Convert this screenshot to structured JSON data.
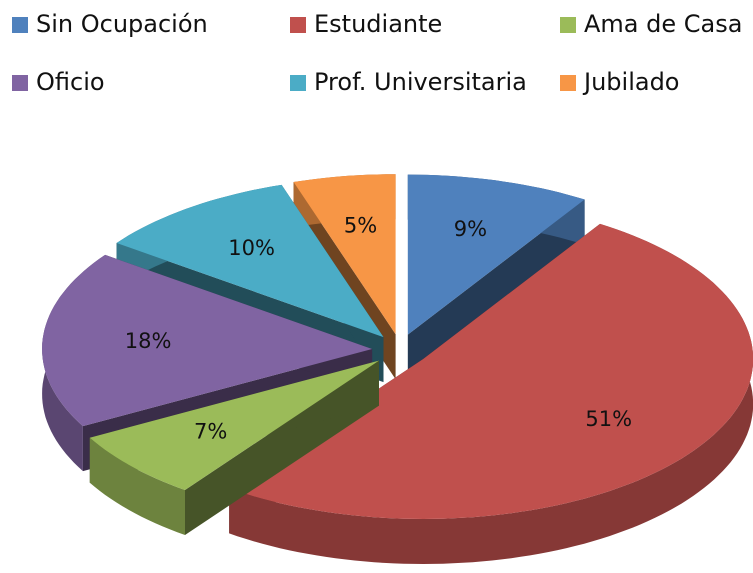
{
  "chart_data": {
    "type": "pie",
    "categories": [
      "Sin Ocupación",
      "Estudiante",
      "Ama de Casa",
      "Oficio",
      "Prof. Universitaria",
      "Jubilado"
    ],
    "values": [
      9,
      51,
      7,
      18,
      10,
      5
    ],
    "value_labels": [
      "9%",
      "51%",
      "7%",
      "18%",
      "10%",
      "5%"
    ],
    "colors": [
      "#4f81bd",
      "#c0504d",
      "#9bbb59",
      "#8064a2",
      "#4bacc6",
      "#f79646"
    ],
    "legend": "top"
  }
}
